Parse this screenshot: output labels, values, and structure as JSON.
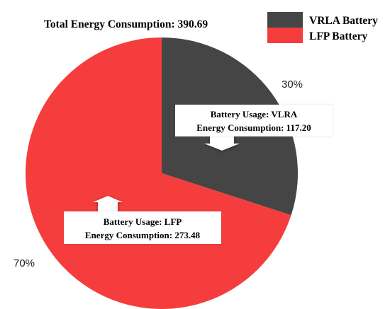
{
  "chart_data": {
    "type": "pie",
    "title": "Total Energy Consumption: 390.69",
    "slices": [
      {
        "name": "VRLA Battery",
        "value": 117.2,
        "percent_label": "30%",
        "color": "#454545",
        "annotation": [
          "Battery Usage: VLRA",
          "Energy Consumption: 117.20"
        ]
      },
      {
        "name": "LFP Battery",
        "value": 273.48,
        "percent_label": "70%",
        "color": "#f53d3d",
        "annotation": [
          "Battery Usage: LFP",
          "Energy Consumption: 273.48"
        ]
      }
    ],
    "legend_position": "top-right"
  }
}
